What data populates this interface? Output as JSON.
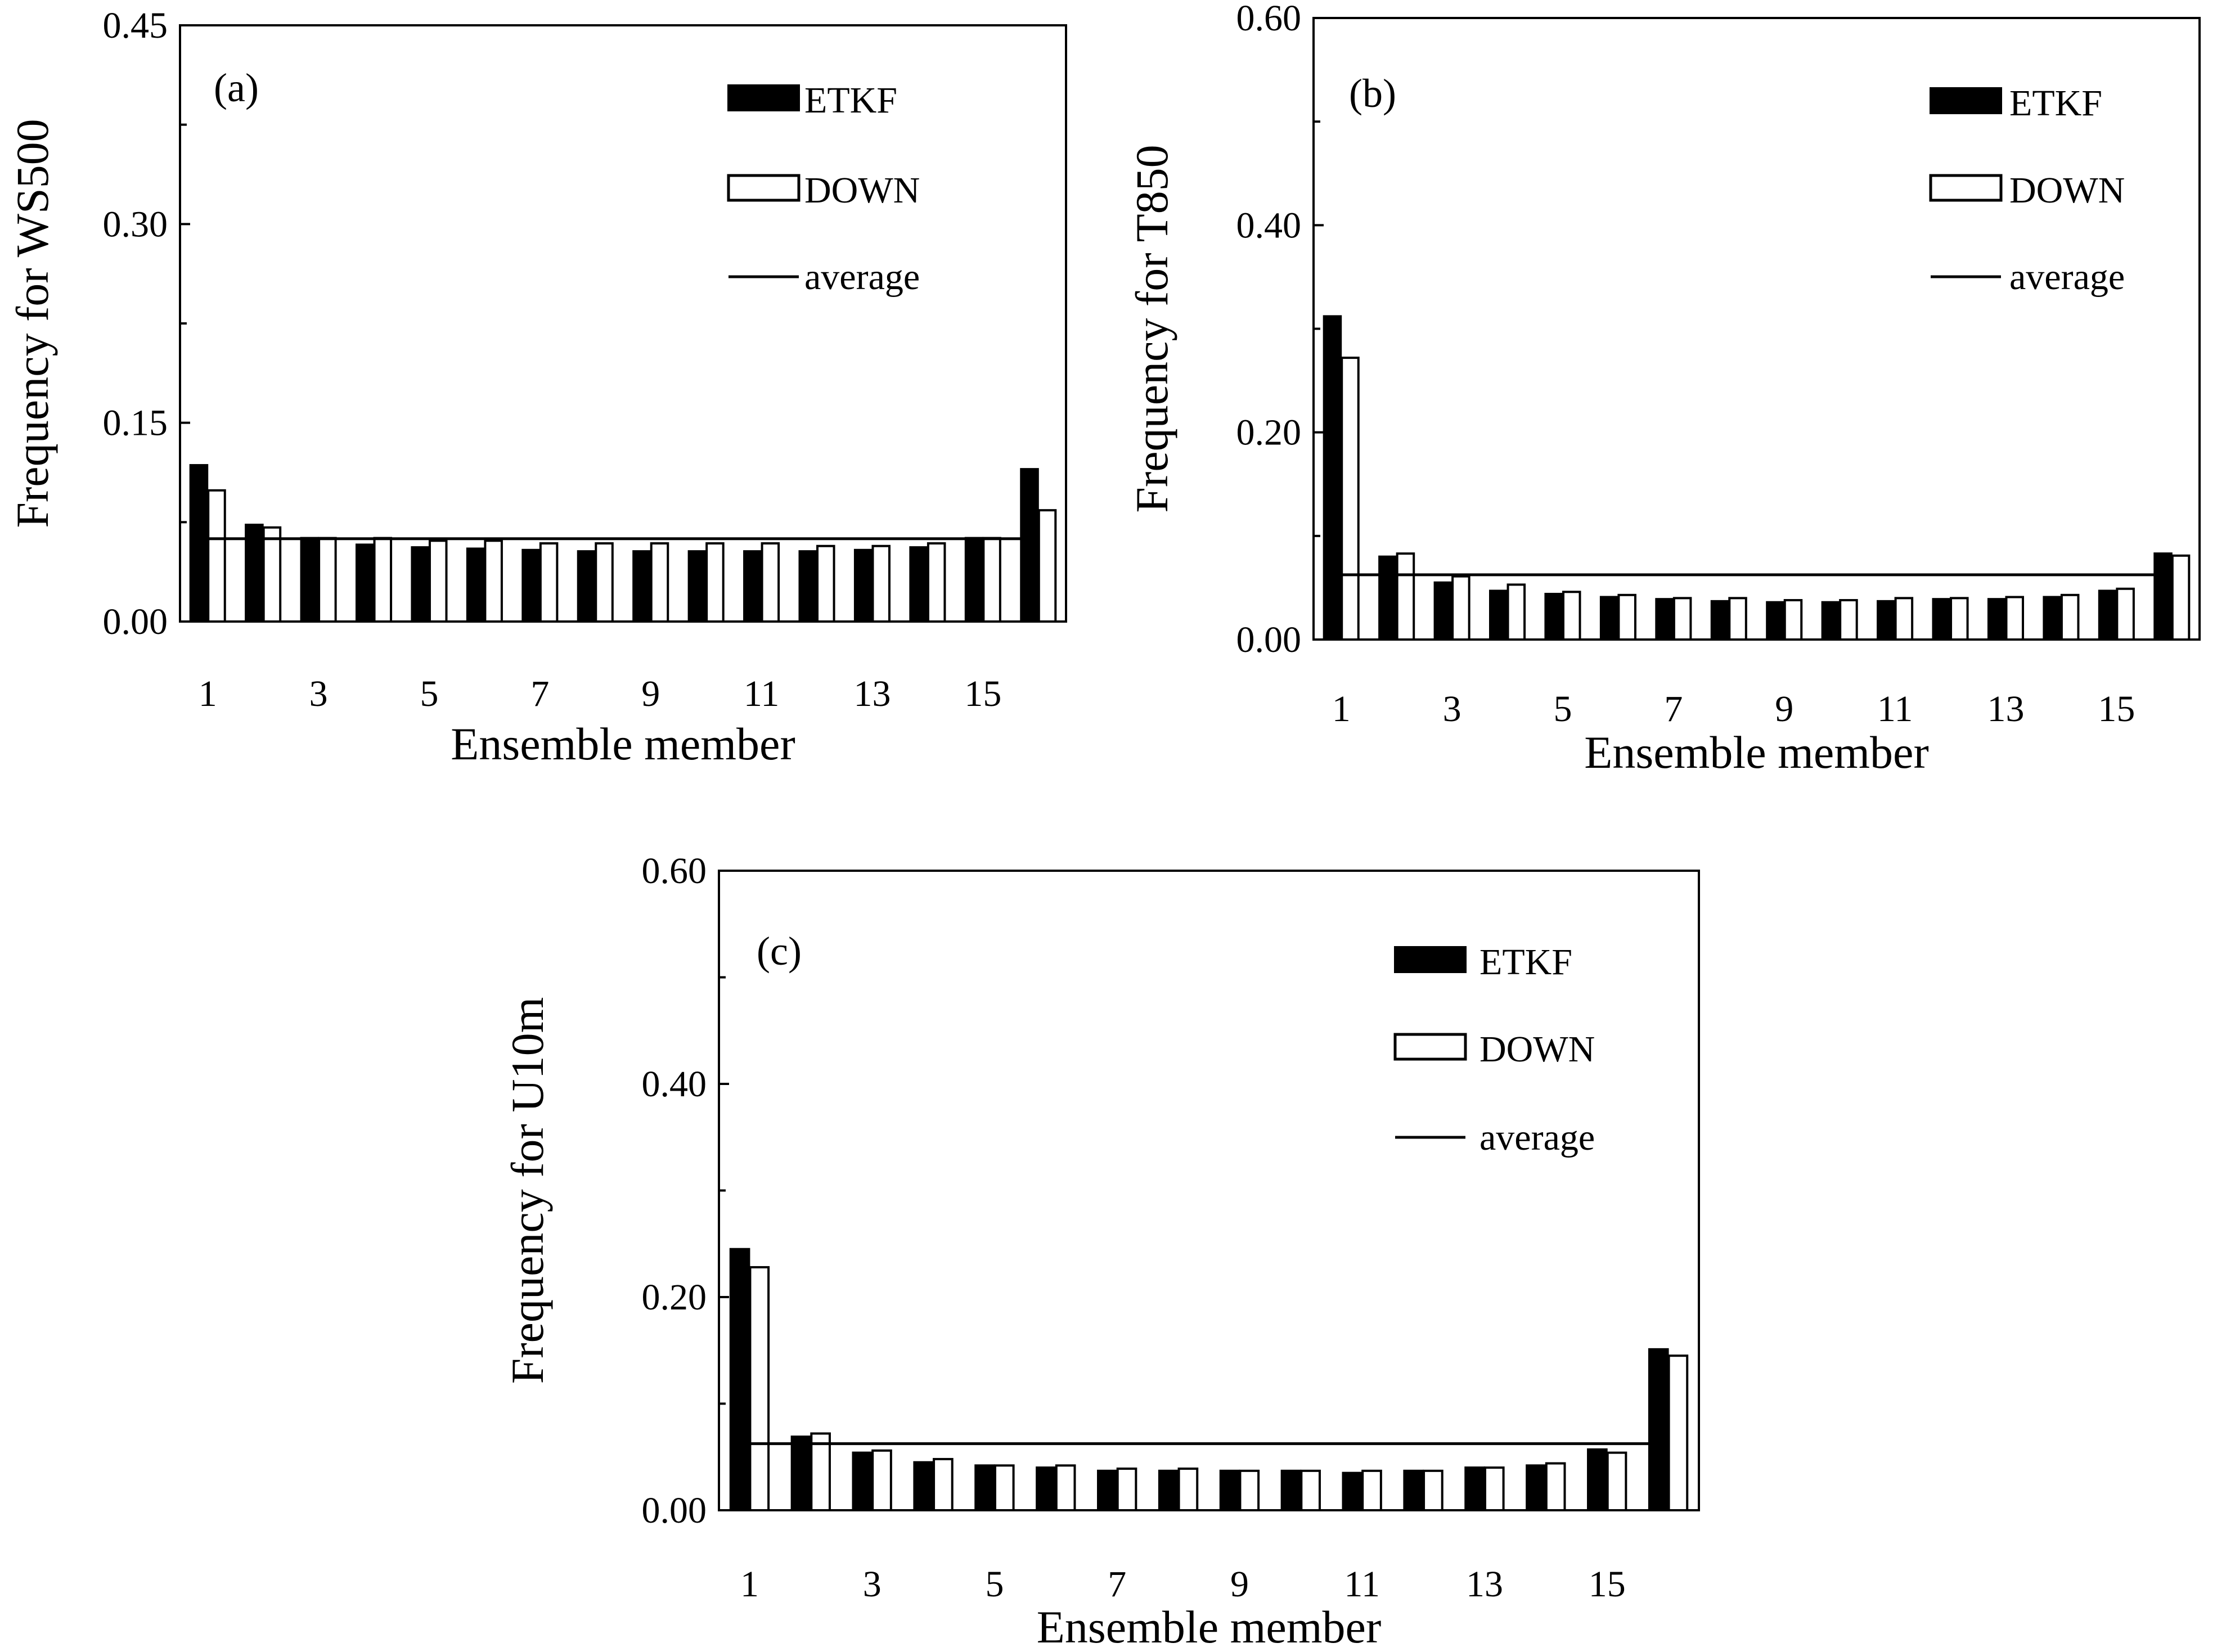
{
  "figure": {
    "legend": {
      "etkf": "ETKF",
      "down": "DOWN",
      "average": "average"
    },
    "colors": {
      "etkf": "#000000",
      "down": "#ffffff",
      "outline": "#000000",
      "average": "#000000",
      "background": "#ffffff"
    }
  },
  "chart_data": [
    {
      "type": "bar",
      "panel": "(a)",
      "title": "",
      "xlabel": "Ensemble member",
      "ylabel": "Frequency for  WS500",
      "ylim": [
        0,
        0.45
      ],
      "yticks": [
        "0.00",
        "0.15",
        "0.30",
        "0.45"
      ],
      "ytick_values": [
        0,
        0.15,
        0.3,
        0.45
      ],
      "categories": [
        1,
        2,
        3,
        4,
        5,
        6,
        7,
        8,
        9,
        10,
        11,
        12,
        13,
        14,
        15,
        16
      ],
      "xtick_labels": [
        "1",
        "3",
        "5",
        "7",
        "9",
        "11",
        "13",
        "15"
      ],
      "average": 0.0625,
      "series": [
        {
          "name": "ETKF",
          "values": [
            0.118,
            0.073,
            0.063,
            0.058,
            0.056,
            0.055,
            0.054,
            0.053,
            0.053,
            0.053,
            0.053,
            0.053,
            0.054,
            0.056,
            0.063,
            0.115
          ]
        },
        {
          "name": "DOWN",
          "values": [
            0.099,
            0.071,
            0.063,
            0.063,
            0.061,
            0.061,
            0.059,
            0.059,
            0.059,
            0.059,
            0.059,
            0.057,
            0.057,
            0.059,
            0.063,
            0.084
          ]
        }
      ]
    },
    {
      "type": "bar",
      "panel": "(b)",
      "title": "",
      "xlabel": "Ensemble member",
      "ylabel": "Frequency for T850",
      "ylim": [
        0,
        0.6
      ],
      "yticks": [
        "0.00",
        "0.20",
        "0.40",
        "0.60"
      ],
      "ytick_values": [
        0,
        0.2,
        0.4,
        0.6
      ],
      "categories": [
        1,
        2,
        3,
        4,
        5,
        6,
        7,
        8,
        9,
        10,
        11,
        12,
        13,
        14,
        15,
        16
      ],
      "xtick_labels": [
        "1",
        "3",
        "5",
        "7",
        "9",
        "11",
        "13",
        "15"
      ],
      "average": 0.0625,
      "series": [
        {
          "name": "ETKF",
          "values": [
            0.312,
            0.08,
            0.055,
            0.047,
            0.044,
            0.041,
            0.039,
            0.037,
            0.036,
            0.036,
            0.037,
            0.039,
            0.039,
            0.041,
            0.047,
            0.083
          ]
        },
        {
          "name": "DOWN",
          "values": [
            0.272,
            0.083,
            0.061,
            0.053,
            0.046,
            0.043,
            0.04,
            0.04,
            0.038,
            0.038,
            0.04,
            0.04,
            0.041,
            0.043,
            0.049,
            0.081
          ]
        }
      ]
    },
    {
      "type": "bar",
      "panel": "(c)",
      "title": "",
      "xlabel": "Ensemble member",
      "ylabel": "Frequency for U10m",
      "ylim": [
        0,
        0.6
      ],
      "yticks": [
        "0.00",
        "0.20",
        "0.40",
        "0.60"
      ],
      "ytick_values": [
        0,
        0.2,
        0.4,
        0.6
      ],
      "categories": [
        1,
        2,
        3,
        4,
        5,
        6,
        7,
        8,
        9,
        10,
        11,
        12,
        13,
        14,
        15,
        16
      ],
      "xtick_labels": [
        "1",
        "3",
        "5",
        "7",
        "9",
        "11",
        "13",
        "15"
      ],
      "average": 0.0625,
      "series": [
        {
          "name": "ETKF",
          "values": [
            0.245,
            0.069,
            0.054,
            0.045,
            0.042,
            0.04,
            0.037,
            0.037,
            0.037,
            0.037,
            0.035,
            0.037,
            0.04,
            0.042,
            0.057,
            0.151
          ]
        },
        {
          "name": "DOWN",
          "values": [
            0.228,
            0.072,
            0.056,
            0.048,
            0.042,
            0.042,
            0.039,
            0.039,
            0.037,
            0.037,
            0.037,
            0.037,
            0.04,
            0.044,
            0.054,
            0.145
          ]
        }
      ]
    }
  ]
}
